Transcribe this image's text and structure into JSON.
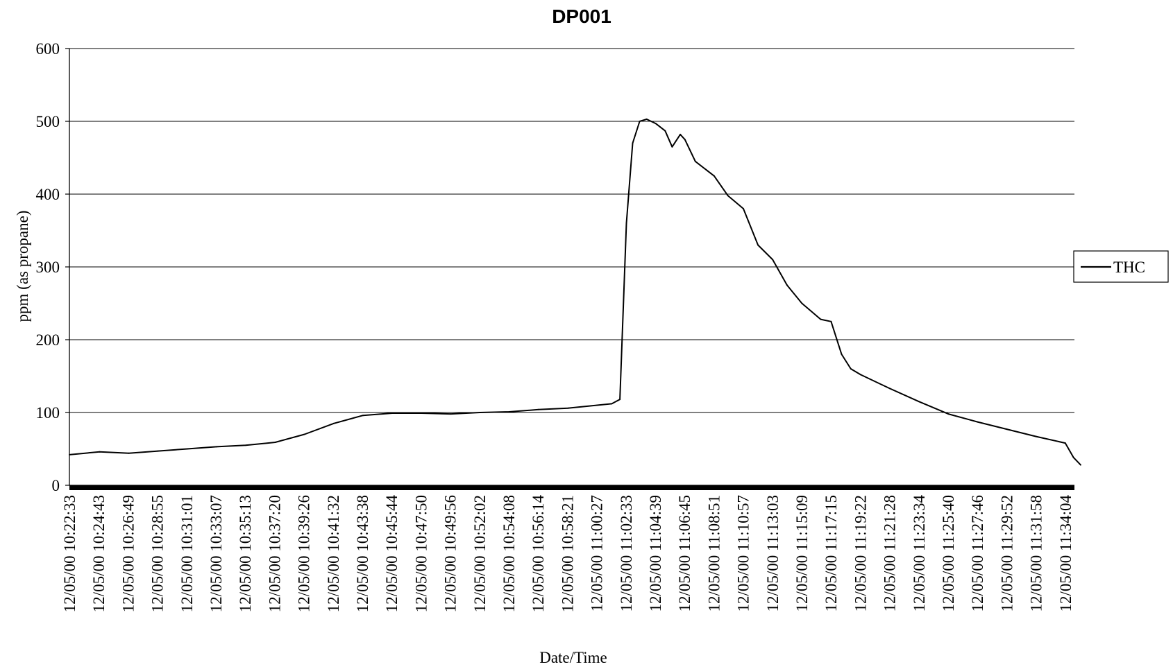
{
  "chart_data": {
    "type": "line",
    "title": "DP001",
    "xlabel": "Date/Time",
    "ylabel": "ppm (as propane)",
    "ylim": [
      0,
      600
    ],
    "yticks": [
      0,
      100,
      200,
      300,
      400,
      500,
      600
    ],
    "grid": "horizontal",
    "legend_position": "right",
    "line_color": "#000000",
    "x_tick_labels": [
      "12/05/00 10:22:33",
      "12/05/00 10:24:43",
      "12/05/00 10:26:49",
      "12/05/00 10:28:55",
      "12/05/00 10:31:01",
      "12/05/00 10:33:07",
      "12/05/00 10:35:13",
      "12/05/00 10:37:20",
      "12/05/00 10:39:26",
      "12/05/00 10:41:32",
      "12/05/00 10:43:38",
      "12/05/00 10:45:44",
      "12/05/00 10:47:50",
      "12/05/00 10:49:56",
      "12/05/00 10:52:02",
      "12/05/00 10:54:08",
      "12/05/00 10:56:14",
      "12/05/00 10:58:21",
      "12/05/00 11:00:27",
      "12/05/00 11:02:33",
      "12/05/00 11:04:39",
      "12/05/00 11:06:45",
      "12/05/00 11:08:51",
      "12/05/00 11:10:57",
      "12/05/00 11:13:03",
      "12/05/00 11:15:09",
      "12/05/00 11:17:15",
      "12/05/00 11:19:22",
      "12/05/00 11:21:28",
      "12/05/00 11:23:34",
      "12/05/00 11:25:40",
      "12/05/00 11:27:46",
      "12/05/00 11:29:52",
      "12/05/00 11:31:58",
      "12/05/00 11:34:04"
    ],
    "series": [
      {
        "name": "THC",
        "x": [
          "12/05/00 10:22:33",
          "12/05/00 10:24:43",
          "12/05/00 10:26:49",
          "12/05/00 10:28:55",
          "12/05/00 10:31:01",
          "12/05/00 10:33:07",
          "12/05/00 10:35:13",
          "12/05/00 10:37:20",
          "12/05/00 10:39:26",
          "12/05/00 10:41:32",
          "12/05/00 10:43:38",
          "12/05/00 10:45:44",
          "12/05/00 10:47:50",
          "12/05/00 10:49:56",
          "12/05/00 10:52:02",
          "12/05/00 10:54:08",
          "12/05/00 10:56:14",
          "12/05/00 10:58:21",
          "12/05/00 11:00:27",
          "12/05/00 11:01:30",
          "12/05/00 11:02:05",
          "12/05/00 11:02:33",
          "12/05/00 11:03:00",
          "12/05/00 11:03:30",
          "12/05/00 11:04:00",
          "12/05/00 11:04:39",
          "12/05/00 11:05:20",
          "12/05/00 11:05:50",
          "12/05/00 11:06:25",
          "12/05/00 11:06:45",
          "12/05/00 11:07:30",
          "12/05/00 11:08:51",
          "12/05/00 11:09:50",
          "12/05/00 11:10:57",
          "12/05/00 11:12:00",
          "12/05/00 11:13:03",
          "12/05/00 11:14:05",
          "12/05/00 11:15:09",
          "12/05/00 11:16:30",
          "12/05/00 11:17:15",
          "12/05/00 11:18:00",
          "12/05/00 11:18:40",
          "12/05/00 11:19:22",
          "12/05/00 11:21:28",
          "12/05/00 11:23:34",
          "12/05/00 11:25:40",
          "12/05/00 11:27:46",
          "12/05/00 11:29:52",
          "12/05/00 11:31:58",
          "12/05/00 11:34:04",
          "12/05/00 11:34:40",
          "12/05/00 11:35:10"
        ],
        "y": [
          42,
          46,
          44,
          47,
          50,
          53,
          55,
          59,
          70,
          85,
          96,
          99,
          99,
          98,
          100,
          101,
          104,
          106,
          110,
          112,
          118,
          360,
          470,
          500,
          503,
          497,
          487,
          465,
          482,
          475,
          445,
          425,
          398,
          380,
          330,
          310,
          275,
          250,
          228,
          225,
          180,
          160,
          152,
          133,
          115,
          98,
          87,
          77,
          67,
          58,
          38,
          28
        ]
      }
    ]
  }
}
